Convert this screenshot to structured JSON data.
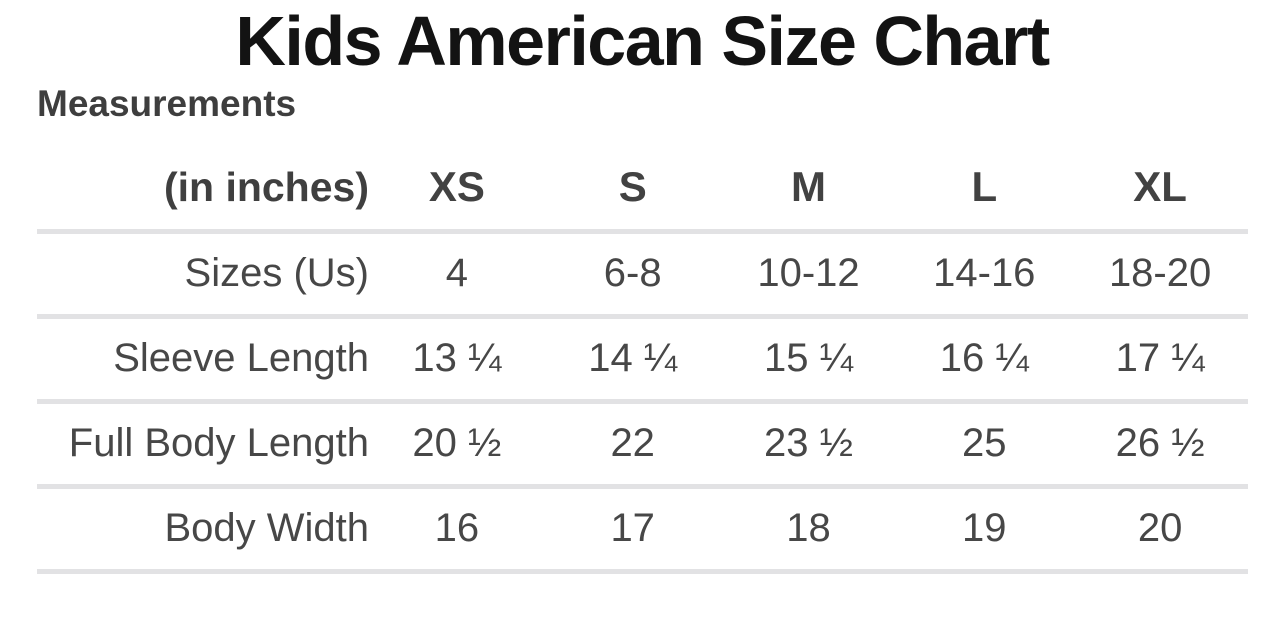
{
  "page": {
    "title": "Kids American Size Chart",
    "section_heading": "Measurements"
  },
  "table": {
    "unit_label": "(in inches)",
    "columns": [
      "XS",
      "S",
      "M",
      "L",
      "XL"
    ],
    "rows": [
      {
        "label": "Sizes (Us)",
        "values": [
          "4",
          "6-8",
          "10-12",
          "14-16",
          "18-20"
        ]
      },
      {
        "label": "Sleeve Length",
        "values": [
          "13 ¼",
          "14 ¼",
          "15 ¼",
          "16 ¼",
          "17 ¼"
        ]
      },
      {
        "label": "Full Body Length",
        "values": [
          "20 ½",
          "22",
          "23 ½",
          "25",
          "26 ½"
        ]
      },
      {
        "label": "Body Width",
        "values": [
          "16",
          "17",
          "18",
          "19",
          "20"
        ]
      }
    ]
  },
  "chart_data": {
    "type": "table",
    "title": "Kids American Size Chart",
    "subtitle": "Measurements",
    "unit": "inches",
    "columns": [
      "(in inches)",
      "XS",
      "S",
      "M",
      "L",
      "XL"
    ],
    "rows": [
      [
        "Sizes (Us)",
        "4",
        "6-8",
        "10-12",
        "14-16",
        "18-20"
      ],
      [
        "Sleeve Length",
        "13 ¼",
        "14 ¼",
        "15 ¼",
        "16 ¼",
        "17 ¼"
      ],
      [
        "Full Body Length",
        "20 ½",
        "22",
        "23 ½",
        "25",
        "26 ½"
      ],
      [
        "Body Width",
        "16",
        "17",
        "18",
        "19",
        "20"
      ]
    ]
  },
  "colors": {
    "title_text": "#131313",
    "heading_text": "#3e3e3e",
    "body_text": "#474747",
    "divider": "#e2e2e4",
    "background": "#ffffff"
  }
}
